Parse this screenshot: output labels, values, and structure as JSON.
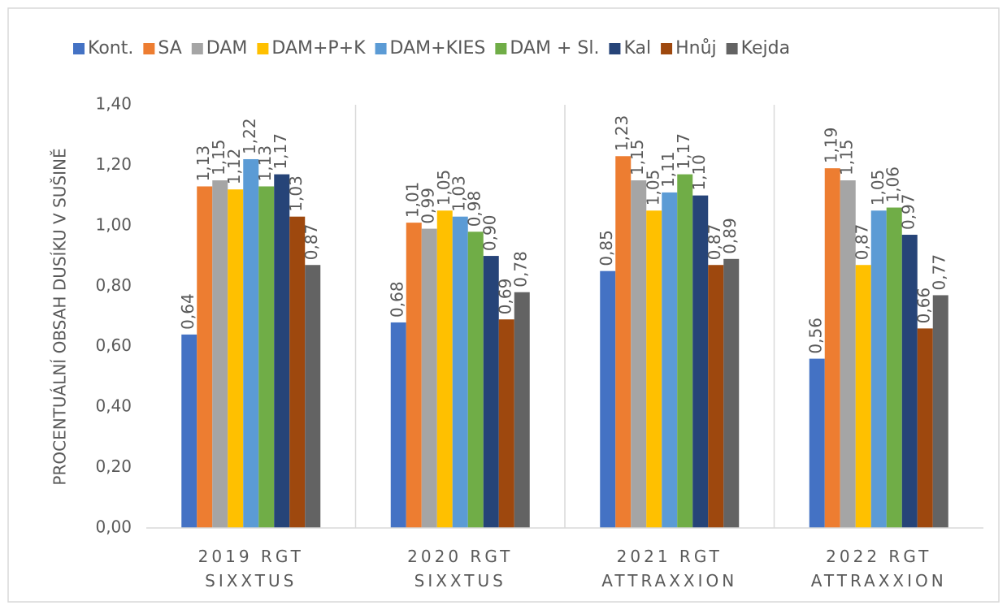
{
  "chart_data": {
    "type": "bar",
    "y_axis_label": "PROCENTUÁLNÍ OBSAH DUSÍKU V SUŠINĚ",
    "categories": [
      "2019 RGT SIXXTUS",
      "2020 RGT SIXXTUS",
      "2021 RGT ATTRAXXION",
      "2022 RGT ATTRAXXION"
    ],
    "series": [
      {
        "name": "Kont.",
        "color": "#4472c4",
        "values": [
          0.64,
          0.68,
          0.85,
          0.56
        ],
        "value_labels": [
          "0,64",
          "0,68",
          "0,85",
          "0,56"
        ]
      },
      {
        "name": "SA",
        "color": "#ed7d31",
        "values": [
          1.13,
          1.01,
          1.23,
          1.19
        ],
        "value_labels": [
          "1,13",
          "1,01",
          "1,23",
          "1,19"
        ]
      },
      {
        "name": "DAM",
        "color": "#a5a5a5",
        "values": [
          1.15,
          0.99,
          1.15,
          1.15
        ],
        "value_labels": [
          "1,15",
          "0,99",
          "1,15",
          "1,15"
        ]
      },
      {
        "name": "DAM+P+K",
        "color": "#ffc000",
        "values": [
          1.12,
          1.05,
          1.05,
          0.87
        ],
        "value_labels": [
          "1,12",
          "1,05",
          "1,05",
          "0,87"
        ]
      },
      {
        "name": "DAM+KIES",
        "color": "#5b9bd5",
        "values": [
          1.22,
          1.03,
          1.11,
          1.05
        ],
        "value_labels": [
          "1,22",
          "1,03",
          "1,11",
          "1,05"
        ]
      },
      {
        "name": "DAM + Sl.",
        "color": "#70ad47",
        "values": [
          1.13,
          0.98,
          1.17,
          1.06
        ],
        "value_labels": [
          "1,13",
          "0,98",
          "1,17",
          "1,06"
        ]
      },
      {
        "name": "Kal",
        "color": "#264478",
        "values": [
          1.17,
          0.9,
          1.1,
          0.97
        ],
        "value_labels": [
          "1,17",
          "0,90",
          "1,10",
          "0,97"
        ]
      },
      {
        "name": "Hnůj",
        "color": "#9e480e",
        "values": [
          1.03,
          0.69,
          0.87,
          0.66
        ],
        "value_labels": [
          "1,03",
          "0,69",
          "0,87",
          "0,66"
        ]
      },
      {
        "name": "Kejda",
        "color": "#636363",
        "values": [
          0.87,
          0.78,
          0.89,
          0.77
        ],
        "value_labels": [
          "0,87",
          "0,78",
          "0,89",
          "0,77"
        ]
      }
    ],
    "ylim": [
      0,
      1.4
    ],
    "yticks": [
      {
        "value": 0,
        "label": "0,00"
      },
      {
        "value": 0.2,
        "label": "0,20"
      },
      {
        "value": 0.4,
        "label": "0,40"
      },
      {
        "value": 0.6,
        "label": "0,60"
      },
      {
        "value": 0.8,
        "label": "0,80"
      },
      {
        "value": 1.0,
        "label": "1,00"
      },
      {
        "value": 1.2,
        "label": "1,20"
      },
      {
        "value": 1.4,
        "label": "1,40"
      }
    ],
    "legend": "top"
  }
}
